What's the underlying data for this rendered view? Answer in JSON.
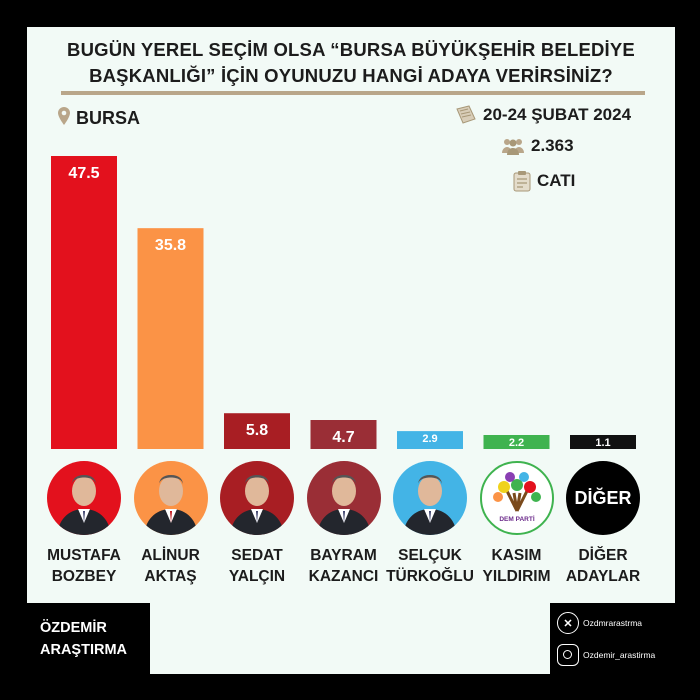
{
  "header": {
    "title_line1": "BUGÜN YEREL SEÇİM OLSA “BURSA BÜYÜKŞEHİR BELEDİYE",
    "title_line2": "BAŞKANLIĞI” İÇİN OYUNUZU HANGİ ADAYA VERİRSİNİZ?"
  },
  "location": {
    "label": "BURSA",
    "icon": "map-pin-icon"
  },
  "meta": {
    "date": "20-24 ŞUBAT 2024",
    "date_icon": "calendar-icon",
    "sample": "2.363",
    "sample_icon": "people-icon",
    "method": "CATI",
    "method_icon": "clipboard-icon"
  },
  "chart_data": {
    "type": "bar",
    "title": "",
    "xlabel": "",
    "ylabel": "",
    "ylim": [
      0,
      47.5
    ],
    "grid": false,
    "categories": [
      "MUSTAFA BOZBEY",
      "ALİNUR AKTAŞ",
      "SEDAT YALÇIN",
      "BAYRAM KAZANCI",
      "SELÇUK TÜRKOĞLU",
      "KASIM YILDIRIM",
      "DİĞER ADAYLAR"
    ],
    "values": [
      47.5,
      35.8,
      5.8,
      4.7,
      2.9,
      2.2,
      1.1
    ],
    "value_labels": [
      "47.5",
      "35.8",
      "5.8",
      "4.7",
      "2.9",
      "2.2",
      "1.1"
    ],
    "colors": [
      "#e3111d",
      "#fb9346",
      "#a81e23",
      "#9a2e36",
      "#43b4e6",
      "#3fb34f",
      "#111111"
    ]
  },
  "candidates": [
    {
      "line1": "MUSTAFA",
      "line2": "BOZBEY",
      "photo_bg": "#e3111d"
    },
    {
      "line1": "ALİNUR",
      "line2": "AKTAŞ",
      "photo_bg": "#fb9346"
    },
    {
      "line1": "SEDAT",
      "line2": "YALÇIN",
      "photo_bg": "#a81e23"
    },
    {
      "line1": "BAYRAM",
      "line2": "KAZANCI",
      "photo_bg": "#9a2e36"
    },
    {
      "line1": "SELÇUK",
      "line2": "TÜRKOĞLU",
      "photo_bg": "#43b4e6"
    },
    {
      "line1": "KASIM",
      "line2": "YILDIRIM",
      "photo_bg": "#ffffff"
    },
    {
      "line1": "DİĞER",
      "line2": "ADAYLAR",
      "photo_bg": "#000000"
    }
  ],
  "logos": {
    "dem_parti": "DEM PARTİ",
    "diger": "DİĞER"
  },
  "footer": {
    "brand_line1": "ÖZDEMİR",
    "brand_line2": "ARAŞTIRMA",
    "x_handle": "Ozdmrarastrma",
    "x_icon": "x-logo-icon",
    "instagram_handle": "Ozdemir_arastirma",
    "instagram_icon": "instagram-icon"
  }
}
